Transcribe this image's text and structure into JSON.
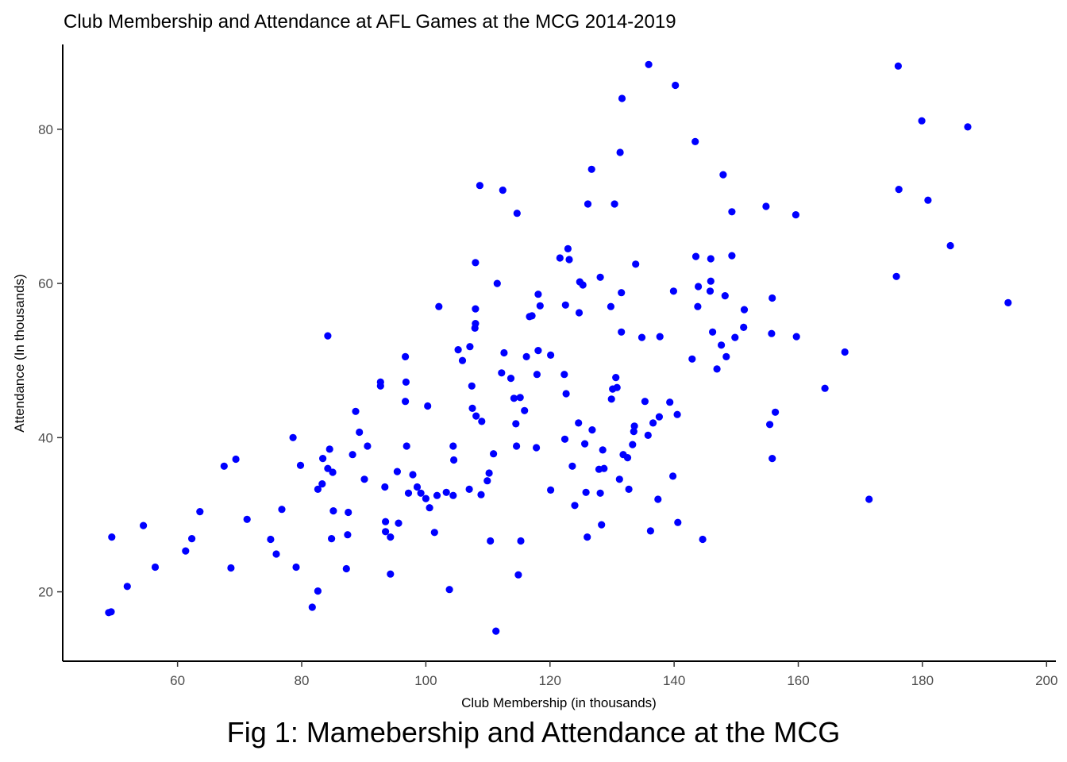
{
  "chart_data": {
    "type": "scatter",
    "title": "Club Membership and Attendance at AFL Games at the MCG 2014-2019",
    "xlabel": "Club Membership (in thousands)",
    "ylabel": "Attendance (In thousands)",
    "xlim": [
      41.5,
      201.5
    ],
    "ylim": [
      11,
      91
    ],
    "x_ticks": [
      60,
      80,
      100,
      120,
      140,
      160,
      180,
      200
    ],
    "y_ticks": [
      20,
      40,
      60,
      80
    ],
    "grid": false,
    "point_color": "#0000ff",
    "points": [
      [
        48.9,
        17.3
      ],
      [
        49.3,
        17.4
      ],
      [
        49.4,
        27.1
      ],
      [
        51.9,
        20.7
      ],
      [
        54.5,
        28.6
      ],
      [
        56.4,
        23.2
      ],
      [
        61.3,
        25.3
      ],
      [
        62.3,
        26.9
      ],
      [
        63.6,
        30.4
      ],
      [
        67.5,
        36.3
      ],
      [
        68.6,
        23.1
      ],
      [
        69.4,
        37.2
      ],
      [
        71.2,
        29.4
      ],
      [
        75.0,
        26.8
      ],
      [
        75.9,
        24.9
      ],
      [
        76.8,
        30.7
      ],
      [
        78.6,
        40.0
      ],
      [
        79.1,
        23.2
      ],
      [
        79.8,
        36.4
      ],
      [
        81.7,
        18.0
      ],
      [
        82.6,
        33.3
      ],
      [
        82.6,
        20.1
      ],
      [
        83.3,
        34.0
      ],
      [
        83.4,
        37.3
      ],
      [
        84.2,
        36.0
      ],
      [
        84.2,
        53.2
      ],
      [
        84.5,
        38.5
      ],
      [
        84.8,
        26.9
      ],
      [
        85.0,
        35.5
      ],
      [
        85.1,
        30.5
      ],
      [
        87.2,
        23.0
      ],
      [
        87.4,
        27.4
      ],
      [
        87.5,
        30.3
      ],
      [
        88.2,
        37.8
      ],
      [
        88.7,
        43.4
      ],
      [
        89.3,
        40.7
      ],
      [
        90.1,
        34.6
      ],
      [
        90.6,
        38.9
      ],
      [
        92.7,
        47.2
      ],
      [
        92.7,
        46.7
      ],
      [
        93.4,
        33.6
      ],
      [
        93.5,
        27.8
      ],
      [
        93.5,
        29.1
      ],
      [
        94.3,
        27.1
      ],
      [
        94.3,
        22.3
      ],
      [
        95.4,
        35.6
      ],
      [
        95.6,
        28.9
      ],
      [
        96.7,
        50.5
      ],
      [
        96.7,
        44.7
      ],
      [
        96.8,
        47.2
      ],
      [
        96.9,
        38.9
      ],
      [
        97.2,
        32.8
      ],
      [
        97.9,
        35.2
      ],
      [
        98.6,
        33.6
      ],
      [
        99.2,
        32.8
      ],
      [
        100.0,
        32.1
      ],
      [
        100.3,
        44.1
      ],
      [
        100.6,
        30.9
      ],
      [
        101.4,
        27.7
      ],
      [
        101.8,
        32.5
      ],
      [
        102.1,
        57.0
      ],
      [
        103.3,
        32.9
      ],
      [
        103.8,
        20.3
      ],
      [
        104.4,
        32.5
      ],
      [
        104.4,
        38.9
      ],
      [
        104.5,
        37.1
      ],
      [
        105.2,
        51.4
      ],
      [
        105.9,
        50.0
      ],
      [
        107.0,
        33.3
      ],
      [
        107.1,
        51.8
      ],
      [
        107.4,
        46.7
      ],
      [
        107.5,
        43.8
      ],
      [
        107.9,
        54.2
      ],
      [
        108.0,
        54.8
      ],
      [
        108.0,
        56.7
      ],
      [
        108.0,
        62.7
      ],
      [
        108.1,
        42.8
      ],
      [
        108.7,
        72.7
      ],
      [
        108.9,
        32.6
      ],
      [
        109.0,
        42.1
      ],
      [
        109.9,
        34.4
      ],
      [
        110.2,
        35.4
      ],
      [
        110.4,
        26.6
      ],
      [
        110.9,
        37.9
      ],
      [
        111.3,
        14.9
      ],
      [
        111.5,
        60.0
      ],
      [
        112.2,
        48.4
      ],
      [
        112.4,
        72.1
      ],
      [
        112.6,
        51.0
      ],
      [
        113.7,
        47.7
      ],
      [
        114.2,
        45.1
      ],
      [
        114.5,
        41.8
      ],
      [
        114.6,
        38.9
      ],
      [
        114.7,
        69.1
      ],
      [
        114.9,
        22.2
      ],
      [
        115.2,
        45.2
      ],
      [
        115.3,
        26.6
      ],
      [
        115.9,
        43.5
      ],
      [
        116.2,
        50.5
      ],
      [
        116.7,
        55.7
      ],
      [
        117.1,
        55.8
      ],
      [
        117.8,
        38.7
      ],
      [
        117.9,
        48.2
      ],
      [
        118.1,
        58.6
      ],
      [
        118.1,
        51.3
      ],
      [
        118.4,
        57.1
      ],
      [
        120.1,
        50.7
      ],
      [
        120.1,
        33.2
      ],
      [
        121.6,
        63.3
      ],
      [
        122.3,
        48.2
      ],
      [
        122.4,
        39.8
      ],
      [
        122.5,
        57.2
      ],
      [
        122.6,
        45.7
      ],
      [
        122.9,
        64.5
      ],
      [
        123.1,
        63.1
      ],
      [
        123.6,
        36.3
      ],
      [
        124.0,
        31.2
      ],
      [
        124.6,
        41.9
      ],
      [
        124.7,
        56.2
      ],
      [
        124.8,
        60.2
      ],
      [
        125.3,
        59.8
      ],
      [
        125.6,
        39.2
      ],
      [
        125.8,
        32.9
      ],
      [
        126.0,
        27.1
      ],
      [
        126.1,
        70.3
      ],
      [
        126.7,
        74.8
      ],
      [
        126.8,
        41.0
      ],
      [
        127.9,
        35.9
      ],
      [
        128.1,
        60.8
      ],
      [
        128.1,
        32.8
      ],
      [
        128.3,
        28.7
      ],
      [
        128.5,
        38.4
      ],
      [
        128.7,
        36.0
      ],
      [
        129.8,
        57.0
      ],
      [
        129.9,
        45.0
      ],
      [
        130.1,
        46.3
      ],
      [
        130.4,
        70.3
      ],
      [
        130.6,
        47.8
      ],
      [
        130.8,
        46.5
      ],
      [
        131.2,
        34.6
      ],
      [
        131.3,
        77.0
      ],
      [
        131.5,
        53.7
      ],
      [
        131.5,
        58.8
      ],
      [
        131.6,
        84.0
      ],
      [
        131.8,
        37.8
      ],
      [
        132.5,
        37.4
      ],
      [
        132.7,
        33.3
      ],
      [
        133.3,
        39.1
      ],
      [
        133.5,
        40.8
      ],
      [
        133.6,
        41.5
      ],
      [
        133.8,
        62.5
      ],
      [
        134.8,
        53.0
      ],
      [
        135.3,
        44.7
      ],
      [
        135.8,
        40.3
      ],
      [
        135.9,
        88.4
      ],
      [
        136.2,
        27.9
      ],
      [
        136.6,
        41.9
      ],
      [
        137.4,
        32.0
      ],
      [
        137.6,
        42.7
      ],
      [
        137.7,
        53.1
      ],
      [
        139.3,
        44.6
      ],
      [
        139.8,
        35.0
      ],
      [
        139.9,
        59.0
      ],
      [
        140.2,
        85.7
      ],
      [
        140.5,
        43.0
      ],
      [
        140.6,
        29.0
      ],
      [
        142.9,
        50.2
      ],
      [
        143.4,
        78.4
      ],
      [
        143.5,
        63.5
      ],
      [
        143.8,
        57.0
      ],
      [
        143.9,
        59.6
      ],
      [
        144.6,
        26.8
      ],
      [
        145.8,
        59.0
      ],
      [
        145.9,
        60.3
      ],
      [
        145.9,
        63.2
      ],
      [
        146.2,
        53.7
      ],
      [
        146.9,
        48.9
      ],
      [
        147.6,
        52.0
      ],
      [
        147.9,
        74.1
      ],
      [
        148.2,
        58.4
      ],
      [
        148.4,
        50.5
      ],
      [
        149.3,
        69.3
      ],
      [
        149.3,
        63.6
      ],
      [
        149.8,
        53.0
      ],
      [
        151.2,
        54.3
      ],
      [
        151.3,
        56.6
      ],
      [
        154.8,
        70.0
      ],
      [
        155.4,
        41.7
      ],
      [
        155.7,
        53.5
      ],
      [
        155.8,
        58.1
      ],
      [
        155.8,
        37.3
      ],
      [
        156.3,
        43.3
      ],
      [
        159.6,
        68.9
      ],
      [
        159.7,
        53.1
      ],
      [
        164.3,
        46.4
      ],
      [
        167.5,
        51.1
      ],
      [
        171.4,
        32.0
      ],
      [
        175.8,
        60.9
      ],
      [
        176.1,
        88.2
      ],
      [
        176.2,
        72.2
      ],
      [
        179.9,
        81.1
      ],
      [
        180.9,
        70.8
      ],
      [
        184.5,
        64.9
      ],
      [
        187.3,
        80.3
      ],
      [
        193.8,
        57.5
      ]
    ]
  },
  "caption": "Fig 1: Mamebership and Attendance at the MCG"
}
